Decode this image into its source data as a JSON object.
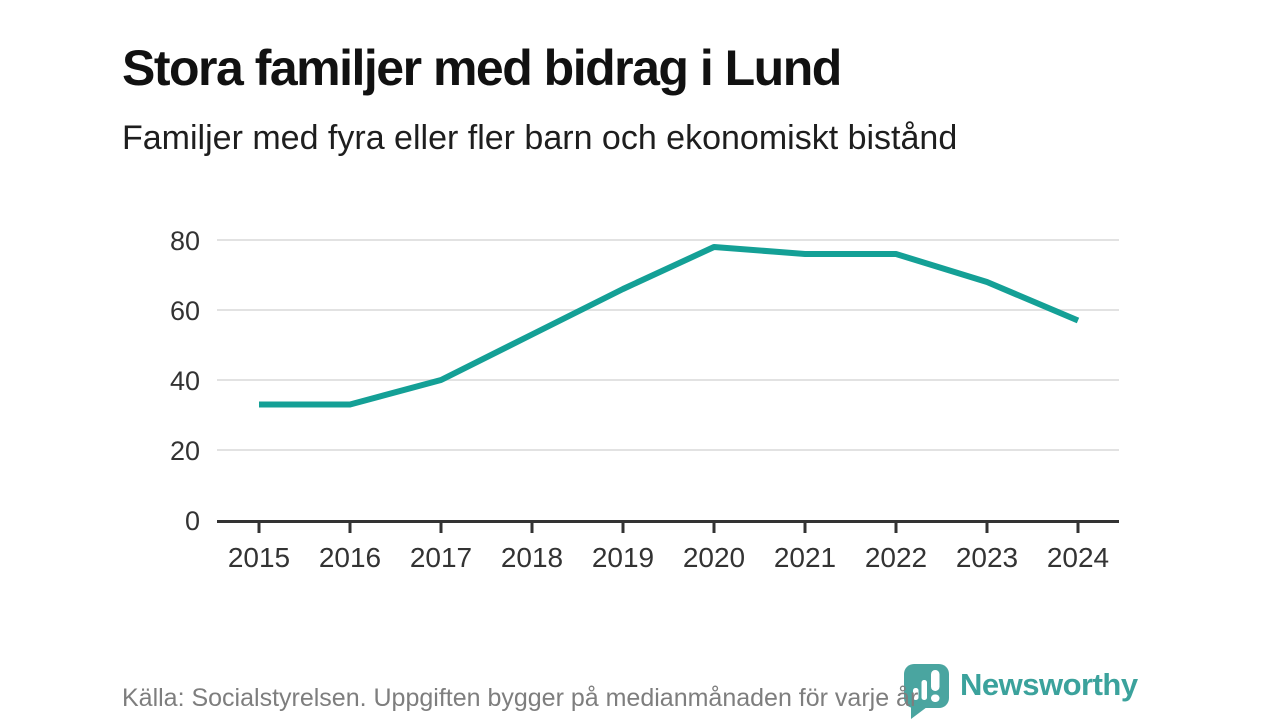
{
  "header": {
    "title": "Stora familjer med bidrag i Lund",
    "subtitle": "Familjer med fyra eller fler barn och ekonomiskt bistånd"
  },
  "chart_data": {
    "type": "line",
    "title": "Stora familjer med bidrag i Lund",
    "subtitle": "Familjer med fyra eller fler barn och ekonomiskt bistånd",
    "categories": [
      "2015",
      "2016",
      "2017",
      "2018",
      "2019",
      "2020",
      "2021",
      "2022",
      "2023",
      "2024"
    ],
    "series": [
      {
        "name": "Familjer med fyra eller fler barn och ekonomiskt bistånd",
        "values": [
          33,
          33,
          40,
          53,
          66,
          78,
          76,
          76,
          68,
          57
        ],
        "color": "#14a096"
      }
    ],
    "xlabel": "",
    "ylabel": "",
    "ylim": [
      0,
      80
    ],
    "yticks": [
      0,
      20,
      40,
      60,
      80
    ],
    "grid": "horizontal",
    "legend": "none"
  },
  "footer": {
    "source": "Källa: Socialstyrelsen. Uppgiften bygger på medianmånaden för varje år",
    "logo": {
      "text": "Newsworthy",
      "icon": "newsworthy-chart-bubble-icon"
    }
  },
  "colors": {
    "line": "#14a096",
    "axis": "#333333",
    "grid": "#e2e2e2",
    "tick_label": "#333333",
    "title": "#111111",
    "subtitle": "#1e1e1e",
    "source_text": "#7e7e7e",
    "logo": "#3ba29c",
    "logo_icon": "#4aa5a0",
    "background": "#ffffff"
  }
}
